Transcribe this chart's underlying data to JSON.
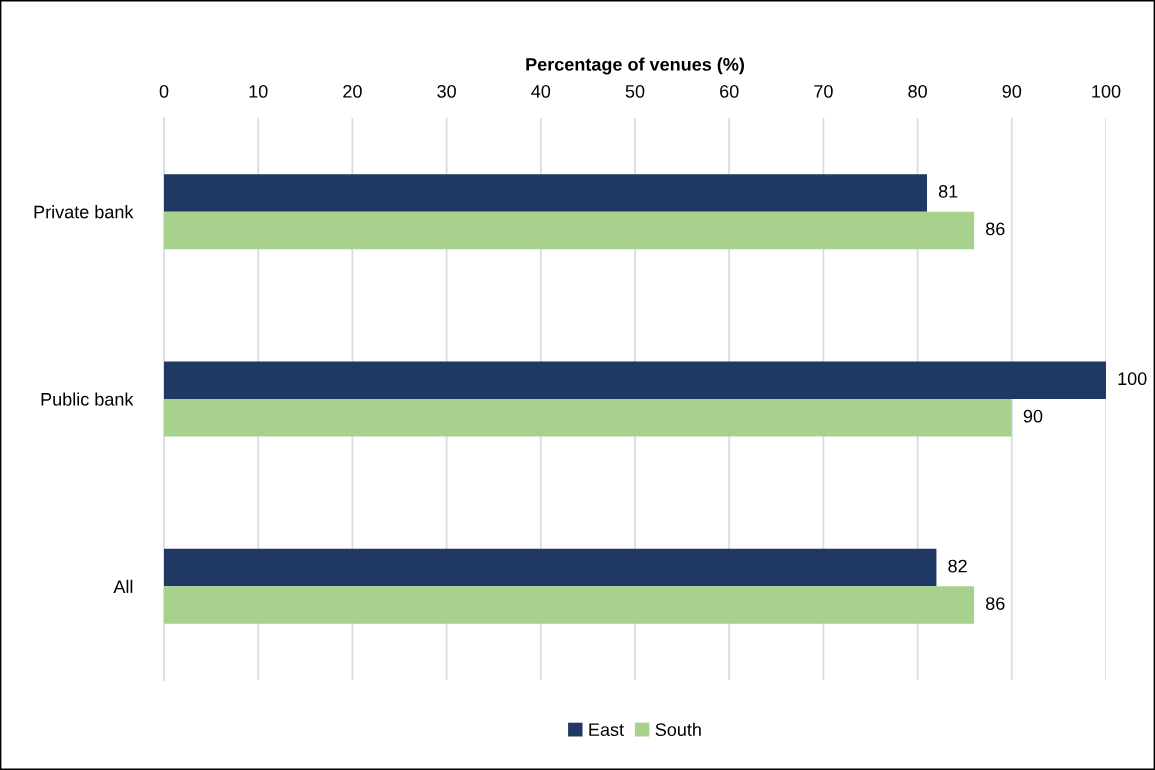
{
  "chart_data": {
    "type": "bar",
    "orientation": "horizontal",
    "xlabel": "Percentage of venues (%)",
    "categories": [
      "Private bank",
      "Public bank",
      "All"
    ],
    "series": [
      {
        "name": "East",
        "color": "#203864",
        "values": [
          81,
          100,
          82
        ]
      },
      {
        "name": "South",
        "color": "#a9d18e",
        "values": [
          86,
          90,
          86
        ]
      }
    ],
    "xlim": [
      0,
      100
    ],
    "xticks": [
      0,
      10,
      20,
      30,
      40,
      50,
      60,
      70,
      80,
      90,
      100
    ],
    "grid": "x",
    "legend": "bottom",
    "data_labels": true
  }
}
